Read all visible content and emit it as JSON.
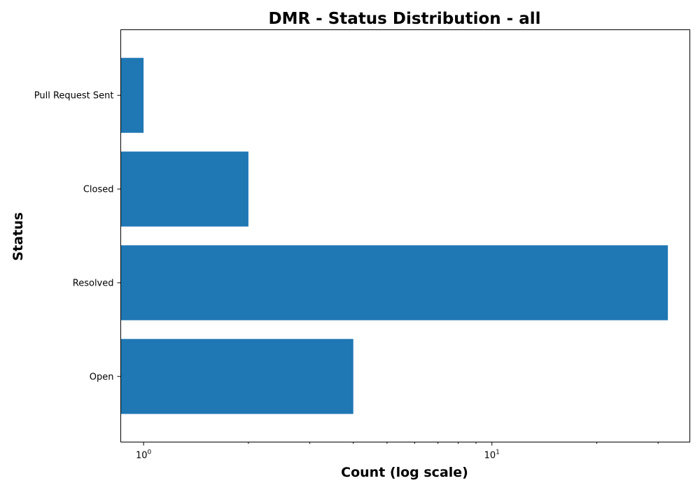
{
  "chart_data": {
    "type": "bar",
    "orientation": "horizontal",
    "title": "DMR - Status Distribution - all",
    "xlabel": "Count (log scale)",
    "ylabel": "Status",
    "x_scale": "log",
    "xlim": [
      0.86,
      37
    ],
    "categories": [
      "Open",
      "Resolved",
      "Closed",
      "Pull Request Sent"
    ],
    "values": [
      4,
      32,
      2,
      1
    ],
    "x_major_ticks": [
      {
        "value": 1,
        "base": "10",
        "exponent": "0"
      },
      {
        "value": 10,
        "base": "10",
        "exponent": "1"
      }
    ],
    "x_minor_ticks": [
      2,
      3,
      4,
      5,
      6,
      7,
      8,
      9,
      20,
      30
    ],
    "bar_color": "#1f77b4",
    "grid": false,
    "legend": "none"
  }
}
